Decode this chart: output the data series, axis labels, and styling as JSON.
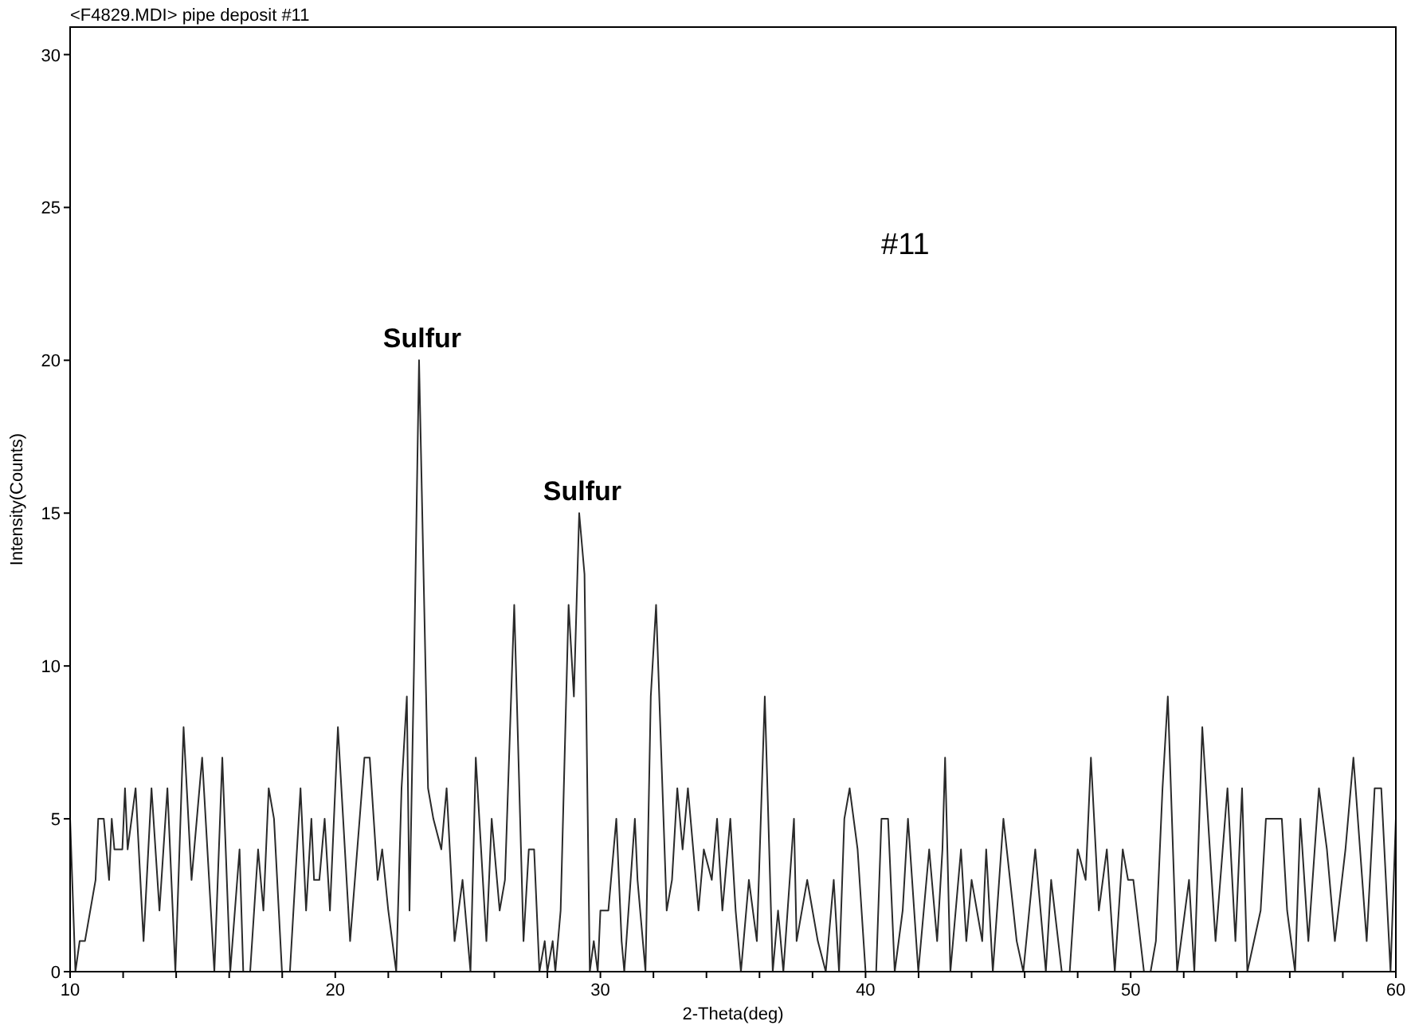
{
  "chart_data": {
    "type": "line",
    "title": "<F4829.MDI> pipe deposit #11",
    "xlabel": "2-Theta(deg)",
    "ylabel": "Intensity(Counts)",
    "xlim": [
      10,
      60
    ],
    "ylim": [
      0,
      30.9
    ],
    "xticks": [
      10,
      {
        "value": 12,
        "label": null
      },
      {
        "value": 14,
        "label": null
      },
      {
        "value": 16,
        "label": null
      },
      {
        "value": 18,
        "label": null
      },
      20,
      {
        "value": 22,
        "label": null
      },
      {
        "value": 24,
        "label": null
      },
      {
        "value": 26,
        "label": null
      },
      {
        "value": 28,
        "label": null
      },
      30,
      {
        "value": 32,
        "label": null
      },
      {
        "value": 34,
        "label": null
      },
      {
        "value": 36,
        "label": null
      },
      {
        "value": 38,
        "label": null
      },
      40,
      {
        "value": 42,
        "label": null
      },
      {
        "value": 44,
        "label": null
      },
      {
        "value": 46,
        "label": null
      },
      {
        "value": 48,
        "label": null
      },
      50,
      {
        "value": 52,
        "label": null
      },
      {
        "value": 54,
        "label": null
      },
      {
        "value": 56,
        "label": null
      },
      {
        "value": 58,
        "label": null
      },
      60
    ],
    "yticks": [
      0,
      5,
      10,
      15,
      20,
      25,
      30
    ],
    "grid": false,
    "marker": "none",
    "line_style": "solid",
    "annotations": [
      {
        "text": "Sulfur",
        "x": 23.16,
        "y": 20
      },
      {
        "text": "Sulfur",
        "x": 29.2,
        "y": 15
      },
      "#11"
    ],
    "series": [
      {
        "color": "#2a2a2a",
        "x": [
          10.0,
          10.2,
          10.36,
          10.56,
          10.96,
          11.06,
          11.27,
          11.47,
          11.57,
          11.67,
          11.97,
          12.07,
          12.17,
          12.47,
          12.77,
          13.07,
          13.37,
          13.67,
          13.97,
          14.28,
          14.58,
          14.98,
          15.44,
          15.74,
          16.04,
          16.39,
          16.53,
          16.79,
          17.09,
          17.29,
          17.49,
          17.69,
          17.99,
          18.29,
          18.69,
          18.9,
          19.1,
          19.2,
          19.4,
          19.6,
          19.8,
          20.1,
          20.56,
          21.1,
          21.3,
          21.6,
          21.77,
          22.0,
          22.3,
          22.5,
          22.7,
          22.8,
          22.97,
          23.16,
          23.5,
          23.7,
          24.0,
          24.2,
          24.5,
          24.8,
          25.1,
          25.3,
          25.7,
          25.9,
          26.2,
          26.4,
          26.75,
          27.1,
          27.3,
          27.5,
          27.7,
          27.9,
          28.0,
          28.2,
          28.3,
          28.5,
          28.8,
          29.0,
          29.2,
          29.4,
          29.6,
          29.75,
          29.9,
          30.0,
          30.3,
          30.6,
          30.8,
          30.9,
          31.3,
          31.4,
          31.7,
          31.9,
          32.1,
          32.5,
          32.7,
          32.9,
          33.1,
          33.3,
          33.7,
          33.9,
          34.2,
          34.4,
          34.6,
          34.9,
          35.1,
          35.3,
          35.6,
          35.9,
          36.2,
          36.5,
          36.7,
          36.9,
          37.3,
          37.4,
          37.8,
          38.2,
          38.5,
          38.8,
          39.0,
          39.2,
          39.4,
          39.7,
          40.0,
          40.4,
          40.6,
          40.85,
          41.1,
          41.4,
          41.6,
          41.99,
          42.4,
          42.7,
          42.9,
          43.0,
          43.2,
          43.6,
          43.8,
          44.0,
          44.4,
          44.55,
          44.8,
          45.2,
          45.7,
          45.95,
          46.4,
          46.8,
          47.0,
          47.4,
          47.7,
          48.0,
          48.3,
          48.5,
          48.8,
          49.1,
          49.4,
          49.7,
          49.9,
          50.1,
          50.5,
          50.75,
          50.95,
          51.2,
          51.4,
          51.75,
          52.2,
          52.4,
          52.7,
          53.2,
          53.65,
          53.95,
          54.2,
          54.4,
          54.9,
          55.1,
          55.7,
          55.9,
          56.2,
          56.4,
          56.7,
          57.1,
          57.4,
          57.7,
          58.1,
          58.4,
          58.9,
          59.2,
          59.45,
          59.8,
          60.0
        ],
        "values": [
          5,
          0,
          1,
          1,
          3,
          5,
          5,
          3,
          5,
          4,
          4,
          6,
          4,
          6,
          1,
          6,
          2,
          6,
          0,
          8,
          3,
          7,
          0,
          7,
          0,
          4,
          0,
          0,
          4,
          2,
          6,
          5,
          0,
          0,
          6,
          2,
          5,
          3,
          3,
          5,
          2,
          8,
          1,
          7,
          7,
          3,
          4,
          2,
          0,
          6,
          9,
          2,
          10,
          20,
          6,
          5,
          4,
          6,
          1,
          3,
          0,
          7,
          1,
          5,
          2,
          3,
          12,
          1,
          4,
          4,
          0,
          1,
          0,
          1,
          0,
          2,
          12,
          9,
          15,
          13,
          0,
          1,
          0,
          2,
          2,
          5,
          1,
          0,
          5,
          3,
          0,
          9,
          12,
          2,
          3,
          6,
          4,
          6,
          2,
          4,
          3,
          5,
          2,
          5,
          2,
          0,
          3,
          1,
          9,
          0,
          2,
          0,
          5,
          1,
          3,
          1,
          0,
          3,
          0,
          5,
          6,
          4,
          0,
          0,
          5,
          5,
          0,
          2,
          5,
          0,
          4,
          1,
          4,
          7,
          0,
          4,
          1,
          3,
          1,
          4,
          0,
          5,
          1,
          0,
          4,
          0,
          3,
          0,
          0,
          4,
          3,
          7,
          2,
          4,
          0,
          4,
          3,
          3,
          0,
          0,
          1,
          6,
          9,
          0,
          3,
          0,
          8,
          1,
          6,
          1,
          6,
          0,
          2,
          5,
          5,
          2,
          0,
          5,
          1,
          6,
          4,
          1,
          4,
          7,
          1,
          6,
          6,
          0,
          5
        ]
      }
    ]
  }
}
